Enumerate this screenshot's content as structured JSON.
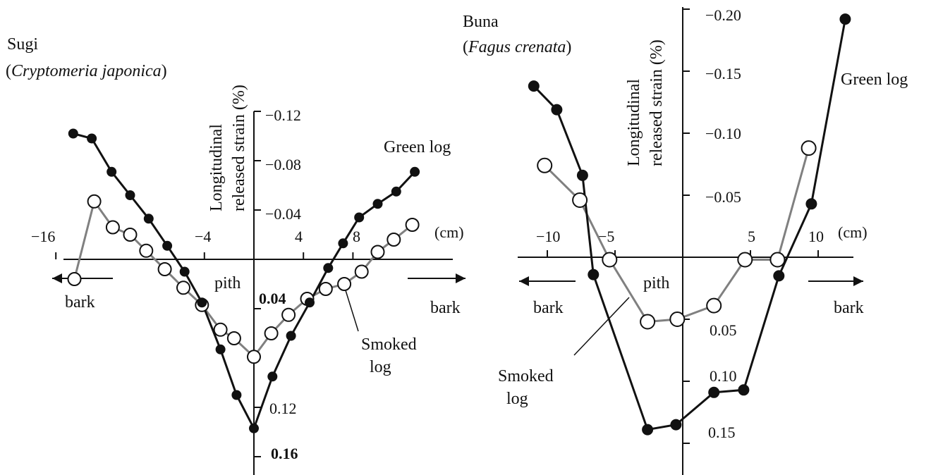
{
  "chart_data": [
    {
      "type": "line",
      "species": "Sugi",
      "species_latin": "Cryptomeria japonica",
      "ylabel_1": "Longitudinal",
      "ylabel_2": "released strain  (%)",
      "unit": "(cm)",
      "x_ticks": [
        "−16",
        "−4",
        "4",
        "8"
      ],
      "x_tick_values": [
        -16,
        -4,
        4,
        8
      ],
      "y_ticks_upper": [
        "−0.12",
        "−0.08",
        "−0.04"
      ],
      "y_ticks_upper_values": [
        -0.12,
        -0.08,
        -0.04
      ],
      "y_ticks_lower": [
        "0.04",
        "0.12",
        "0.16"
      ],
      "y_ticks_lower_values": [
        0.04,
        0.12,
        0.16
      ],
      "xlim": [
        -17,
        16
      ],
      "ylim": [
        -0.13,
        0.17
      ],
      "pith_label": "pith",
      "bark_left": "bark",
      "bark_right": "bark",
      "series": [
        {
          "name": "Green log",
          "marker": "filled",
          "x": [
            -14.6,
            -13.1,
            -11.5,
            -10.0,
            -8.5,
            -7.0,
            -5.6,
            -4.2,
            -2.7,
            -1.4,
            0.0,
            1.5,
            3.0,
            4.5,
            6.0,
            7.2,
            8.5,
            10.0,
            11.5,
            13.0
          ],
          "y": [
            -0.102,
            -0.098,
            -0.071,
            -0.052,
            -0.033,
            -0.011,
            0.01,
            0.035,
            0.073,
            0.11,
            0.137,
            0.095,
            0.062,
            0.035,
            0.007,
            -0.013,
            -0.034,
            -0.045,
            -0.055,
            -0.071
          ]
        },
        {
          "name": "Smoked log",
          "marker": "open",
          "x": [
            -14.5,
            -12.9,
            -11.4,
            -10.0,
            -8.7,
            -7.2,
            -5.7,
            -4.2,
            -2.7,
            -1.6,
            0.0,
            1.4,
            2.8,
            4.3,
            5.8,
            7.3,
            8.7,
            10.0,
            11.3,
            12.8
          ],
          "y": [
            0.016,
            -0.047,
            -0.026,
            -0.02,
            -0.007,
            0.008,
            0.023,
            0.037,
            0.057,
            0.064,
            0.079,
            0.06,
            0.045,
            0.032,
            0.024,
            0.02,
            0.01,
            -0.006,
            -0.016,
            -0.028
          ]
        }
      ]
    },
    {
      "type": "line",
      "species": "Buna",
      "species_latin": "Fagus  crenata",
      "ylabel_1": "Longitudinal",
      "ylabel_2": "released strain (%)",
      "unit": "(cm)",
      "x_ticks": [
        "−10",
        "−5",
        "5",
        "10"
      ],
      "x_tick_values": [
        -10,
        -5,
        5,
        10
      ],
      "y_ticks_upper": [
        "−0.20",
        "−0.15",
        "−0.10",
        "−0.05"
      ],
      "y_ticks_upper_values": [
        -0.2,
        -0.15,
        -0.1,
        -0.05
      ],
      "y_ticks_lower": [
        "0.05",
        "0.10",
        "0.15"
      ],
      "y_ticks_lower_values": [
        0.05,
        0.1,
        0.15
      ],
      "xlim": [
        -12.5,
        13
      ],
      "ylim": [
        -0.21,
        0.16
      ],
      "pith_label": "pith",
      "bark_left": "bark",
      "bark_right": "bark",
      "series": [
        {
          "name": "Green log",
          "marker": "filled",
          "x": [
            -11.0,
            -9.3,
            -7.4,
            -6.6,
            -2.6,
            -0.5,
            2.3,
            4.5,
            7.1,
            9.5,
            12.0
          ],
          "y": [
            -0.138,
            -0.119,
            -0.066,
            0.014,
            0.139,
            0.135,
            0.109,
            0.107,
            0.015,
            -0.043,
            -0.192
          ]
        },
        {
          "name": "Smoked log",
          "marker": "open",
          "x": [
            -10.2,
            -7.6,
            -5.4,
            -2.6,
            -0.4,
            2.3,
            4.6,
            7.0,
            9.3
          ],
          "y": [
            -0.074,
            -0.046,
            0.002,
            0.052,
            0.05,
            0.039,
            0.002,
            0.002,
            -0.088
          ]
        }
      ]
    }
  ]
}
